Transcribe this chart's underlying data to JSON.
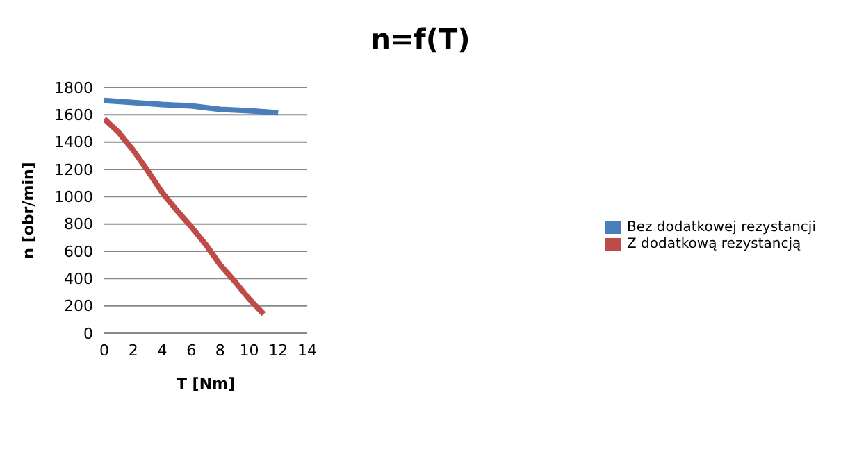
{
  "chart_data": {
    "type": "line",
    "title": "n=f(T)",
    "xlabel": "T [Nm]",
    "ylabel": "n [obr/min]",
    "xlim": [
      0,
      14
    ],
    "xticks": [
      0,
      2,
      4,
      6,
      8,
      10,
      12,
      14
    ],
    "ylim": [
      0,
      1800
    ],
    "yticks": [
      0,
      200,
      400,
      600,
      800,
      1000,
      1200,
      1400,
      1600,
      1800
    ],
    "grid": "y",
    "legend": "right",
    "marker": "none",
    "series": [
      {
        "name": "Bez dodatkowej rezystancji",
        "color": "#4a7ebb",
        "x": [
          0,
          2,
          4,
          6,
          8,
          10,
          12
        ],
        "values": [
          1705,
          1690,
          1675,
          1665,
          1640,
          1630,
          1615
        ]
      },
      {
        "name": "Z dodatkową rezystancją",
        "color": "#be4b48",
        "x": [
          0,
          1,
          2,
          3,
          4,
          5,
          6,
          7,
          8,
          9,
          10,
          11
        ],
        "values": [
          1570,
          1470,
          1340,
          1190,
          1030,
          900,
          780,
          650,
          500,
          380,
          250,
          140
        ]
      }
    ]
  }
}
